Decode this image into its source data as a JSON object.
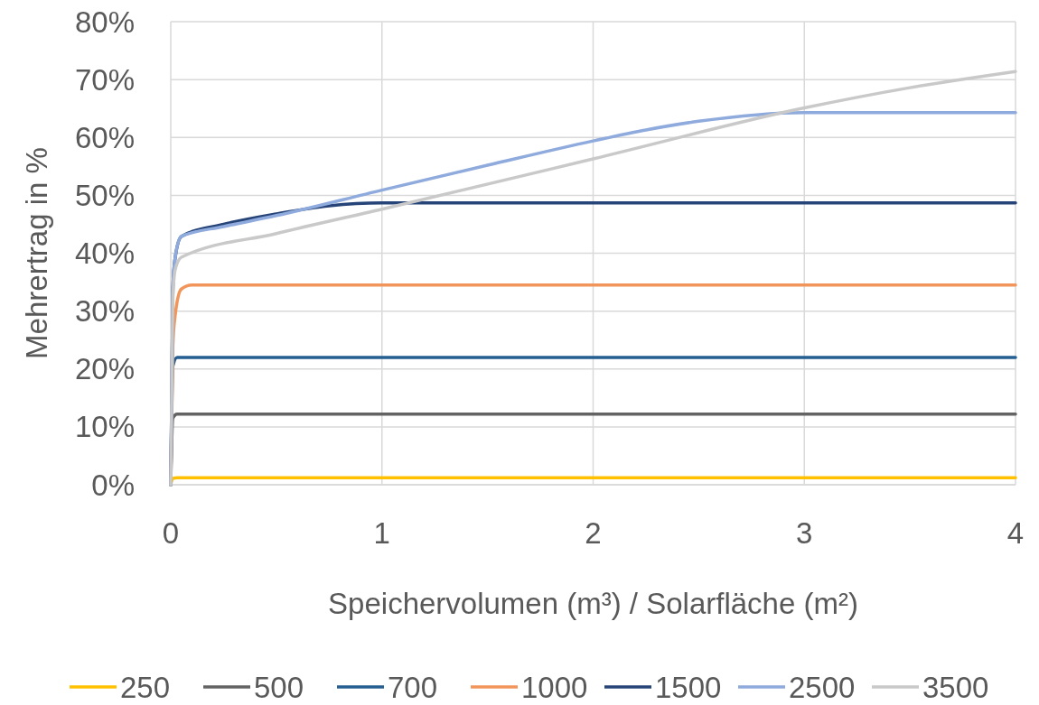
{
  "chart_data": {
    "type": "line",
    "xlabel": "Speichervolumen (m³) / Solarfläche (m²)",
    "ylabel": "Mehrertrag in %",
    "xlim": [
      0,
      4
    ],
    "xticks": [
      0,
      1,
      2,
      3,
      4
    ],
    "ylim": [
      0,
      80
    ],
    "yticks": [
      {
        "value": 0,
        "label": "0%"
      },
      {
        "value": 10,
        "label": "10%"
      },
      {
        "value": 20,
        "label": "20%"
      },
      {
        "value": 30,
        "label": "30%"
      },
      {
        "value": 40,
        "label": "40%"
      },
      {
        "value": 50,
        "label": "50%"
      },
      {
        "value": 60,
        "label": "60%"
      },
      {
        "value": 70,
        "label": "70%"
      },
      {
        "value": 80,
        "label": "80%"
      }
    ],
    "grid": true,
    "legend": "bottom",
    "marker": "none",
    "line_style": "solid",
    "series": [
      {
        "name": "250",
        "color": "#ffc000",
        "x": [
          0,
          0.01,
          0.03,
          4
        ],
        "values": [
          0,
          1.1,
          1.2,
          1.2
        ]
      },
      {
        "name": "500",
        "color": "#636363",
        "x": [
          0,
          0.01,
          0.03,
          4
        ],
        "values": [
          0,
          11.5,
          12.2,
          12.2
        ]
      },
      {
        "name": "700",
        "color": "#255e91",
        "x": [
          0,
          0.01,
          0.03,
          4
        ],
        "values": [
          0,
          20.5,
          22,
          22
        ]
      },
      {
        "name": "1000",
        "color": "#f2955a",
        "x": [
          0,
          0.01,
          0.02,
          0.05,
          0.1,
          4
        ],
        "values": [
          0,
          24,
          29,
          33.8,
          34.5,
          34.5
        ]
      },
      {
        "name": "1500",
        "color": "#264478",
        "x": [
          0,
          0.01,
          0.02,
          0.05,
          0.25,
          0.5,
          0.75,
          1,
          4
        ],
        "values": [
          0,
          34,
          39,
          42.9,
          45,
          46.8,
          48.2,
          48.7,
          48.7
        ]
      },
      {
        "name": "2500",
        "color": "#8faadc",
        "x": [
          0,
          0.01,
          0.02,
          0.05,
          0.25,
          0.5,
          1,
          1.5,
          2,
          2.25,
          2.5,
          3,
          4
        ],
        "values": [
          0,
          34,
          39,
          42.9,
          44.6,
          46.5,
          50.9,
          55.2,
          59.4,
          61.3,
          62.8,
          64.3,
          64.3
        ]
      },
      {
        "name": "3500",
        "color": "#c9c9c9",
        "x": [
          0,
          0.01,
          0.02,
          0.05,
          0.5,
          1,
          2,
          3,
          3.5,
          4
        ],
        "values": [
          0,
          32,
          37,
          39.3,
          43.4,
          47.6,
          56.3,
          65.1,
          68.6,
          71.4
        ]
      }
    ]
  }
}
